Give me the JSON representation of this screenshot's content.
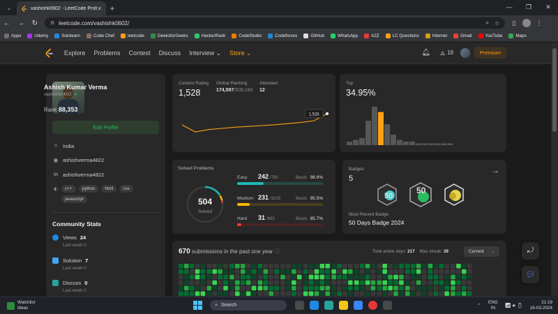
{
  "browser": {
    "tab_title": "vashishk0602 - LeetCode Profi",
    "url": "leetcode.com/vashishk0602/",
    "bookmarks": [
      {
        "label": "Apps",
        "color": "#6f6f6f"
      },
      {
        "label": "Udemy",
        "color": "#a435f0"
      },
      {
        "label": "Sololearn",
        "color": "#1e88e5"
      },
      {
        "label": "Code Chef",
        "color": "#8d6e63"
      },
      {
        "label": "leetcode",
        "color": "#ffa116"
      },
      {
        "label": "GeeksforGeeks",
        "color": "#2f8d46"
      },
      {
        "label": "HackerRank",
        "color": "#2ec866"
      },
      {
        "label": "CodeStudio",
        "color": "#f57c00"
      },
      {
        "label": "Codeforces",
        "color": "#1f8acb"
      },
      {
        "label": "GitHub",
        "color": "#dddddd"
      },
      {
        "label": "WhatsApp",
        "color": "#25d366"
      },
      {
        "label": "A2Z",
        "color": "#e53935"
      },
      {
        "label": "LC Questions",
        "color": "#ffa116"
      },
      {
        "label": "Internet",
        "color": "#d4a017"
      },
      {
        "label": "Gmail",
        "color": "#ea4335"
      },
      {
        "label": "YouTube",
        "color": "#ff0000"
      },
      {
        "label": "Maps",
        "color": "#34a853"
      }
    ]
  },
  "nav": {
    "links": [
      "Explore",
      "Problems",
      "Contest",
      "Discuss",
      "Interview ⌄",
      "Store ⌄"
    ],
    "streak": "19",
    "premium": "Premium"
  },
  "profile": {
    "name": "Ashish Kumar Verma",
    "username": "vashishk0602",
    "rank_label": "Rank",
    "rank_value": "88,353",
    "edit_button": "Edit Profile",
    "location": "India",
    "github": "ashishverma4822",
    "linkedin": "ashishverma4822",
    "skills": [
      "c++",
      "python",
      "html",
      "css",
      "javascript"
    ]
  },
  "community": {
    "title": "Community Stats",
    "items": [
      {
        "label": "Views",
        "value": "24",
        "sub": "Last week 0",
        "color": "#1e88e5"
      },
      {
        "label": "Solution",
        "value": "7",
        "sub": "Last week 0",
        "color": "#42a5f5"
      },
      {
        "label": "Discuss",
        "value": "0",
        "sub": "Last week 0",
        "color": "#26a69a"
      }
    ]
  },
  "contest": {
    "rating_label": "Contest Rating",
    "rating": "1,528",
    "ranking_label": "Global Ranking",
    "ranking": "174,597",
    "ranking_total": "/509,180",
    "attended_label": "Attended",
    "attended": "12",
    "tooltip": "1,528",
    "line_color": "#ffa116",
    "rating_history": [
      1500,
      1482,
      1488,
      1491,
      1494,
      1496,
      1498,
      1500,
      1503,
      1506,
      1510,
      1528
    ]
  },
  "top": {
    "label": "Top",
    "value": "34.95%",
    "histogram": [
      2,
      3,
      4,
      14,
      22,
      19,
      12,
      6,
      3,
      2,
      2,
      1,
      1,
      1,
      1,
      1,
      1
    ],
    "highlight_index": 5,
    "highlight_color": "#ffa116",
    "bar_color": "#575757"
  },
  "solved": {
    "title": "Solved Problems",
    "total": "504",
    "total_label": "Solved",
    "difficulties": [
      {
        "name": "Easy",
        "count": "242",
        "total": "/780",
        "beats_label": "Beats",
        "beats": "98.9%",
        "color": "#1cbaba",
        "track": "#264a45",
        "fraction": 0.31
      },
      {
        "name": "Medium",
        "count": "231",
        "total": "/1615",
        "beats_label": "Beats",
        "beats": "95.5%",
        "color": "#ffb700",
        "track": "#4a3e1e",
        "fraction": 0.143
      },
      {
        "name": "Hard",
        "count": "31",
        "total": "/683",
        "beats_label": "Beats",
        "beats": "85.7%",
        "color": "#f63737",
        "track": "#4a2424",
        "fraction": 0.045
      }
    ]
  },
  "badges": {
    "title": "Badges",
    "count": "5",
    "recent_label": "Most Recent Badge",
    "recent": "50 Days Badge 2024"
  },
  "submissions": {
    "count": "670",
    "title_suffix": "submissions in the past one year",
    "active_label": "Total active days:",
    "active": "217",
    "streak_label": "Max streak:",
    "streak": "39",
    "dropdown": "Current"
  },
  "taskbar": {
    "watch_title": "Watchlist",
    "watch_sub": "Ideas",
    "search": "Search",
    "lang1": "ENG",
    "lang2": "IN",
    "time": "21:19",
    "date": "16-03-2024"
  }
}
